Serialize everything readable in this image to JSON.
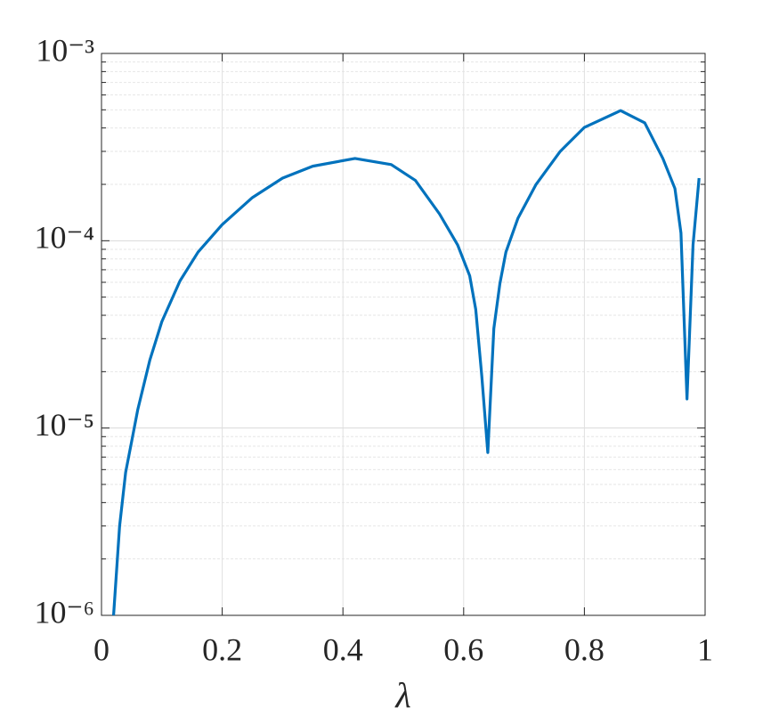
{
  "chart_data": {
    "type": "line",
    "x": [
      0.02,
      0.03,
      0.04,
      0.05,
      0.06,
      0.08,
      0.1,
      0.13,
      0.16,
      0.2,
      0.25,
      0.3,
      0.35,
      0.42,
      0.48,
      0.52,
      0.56,
      0.59,
      0.61,
      0.62,
      0.63,
      0.64,
      0.65,
      0.66,
      0.67,
      0.69,
      0.72,
      0.76,
      0.8,
      0.86,
      0.9,
      0.93,
      0.95,
      0.96,
      0.97,
      0.98,
      0.99
    ],
    "series": [
      {
        "color": "#0072bd",
        "values": [
          1e-06,
          3e-06,
          5.8e-06,
          8.5e-06,
          1.25e-05,
          2.3e-05,
          3.7e-05,
          6.1e-05,
          8.7e-05,
          0.000122,
          0.00017,
          0.000216,
          0.00025,
          0.000275,
          0.000255,
          0.00021,
          0.000139,
          9.5e-05,
          6.5e-05,
          4.3e-05,
          1.9e-05,
          7.4e-06,
          3.4e-05,
          5.9e-05,
          8.7e-05,
          0.000132,
          0.0002,
          0.0003,
          0.000403,
          0.000495,
          0.000426,
          0.000275,
          0.00019,
          0.00011,
          1.43e-05,
          9.5e-05,
          0.000216
        ]
      }
    ],
    "x_label": "λ",
    "xlim": [
      0,
      1
    ],
    "xticks": [
      0,
      0.2,
      0.4,
      0.6,
      0.8,
      1
    ],
    "ylim": [
      1e-06,
      0.001
    ],
    "y_scale": "log",
    "yticks": [
      {
        "value": 1e-06,
        "label": "10⁻⁶"
      },
      {
        "value": 1e-05,
        "label": "10⁻⁵"
      },
      {
        "value": 0.0001,
        "label": "10⁻⁴"
      },
      {
        "value": 0.001,
        "label": "10⁻³"
      }
    ],
    "yminorticks": [
      2e-06,
      3e-06,
      4e-06,
      5e-06,
      6e-06,
      7e-06,
      8e-06,
      9e-06,
      2e-05,
      3e-05,
      4e-05,
      5e-05,
      6e-05,
      7e-05,
      8e-05,
      9e-05,
      0.0002,
      0.0003,
      0.0004,
      0.0005,
      0.0006,
      0.0007,
      0.0008,
      0.0009
    ],
    "grid": true
  }
}
